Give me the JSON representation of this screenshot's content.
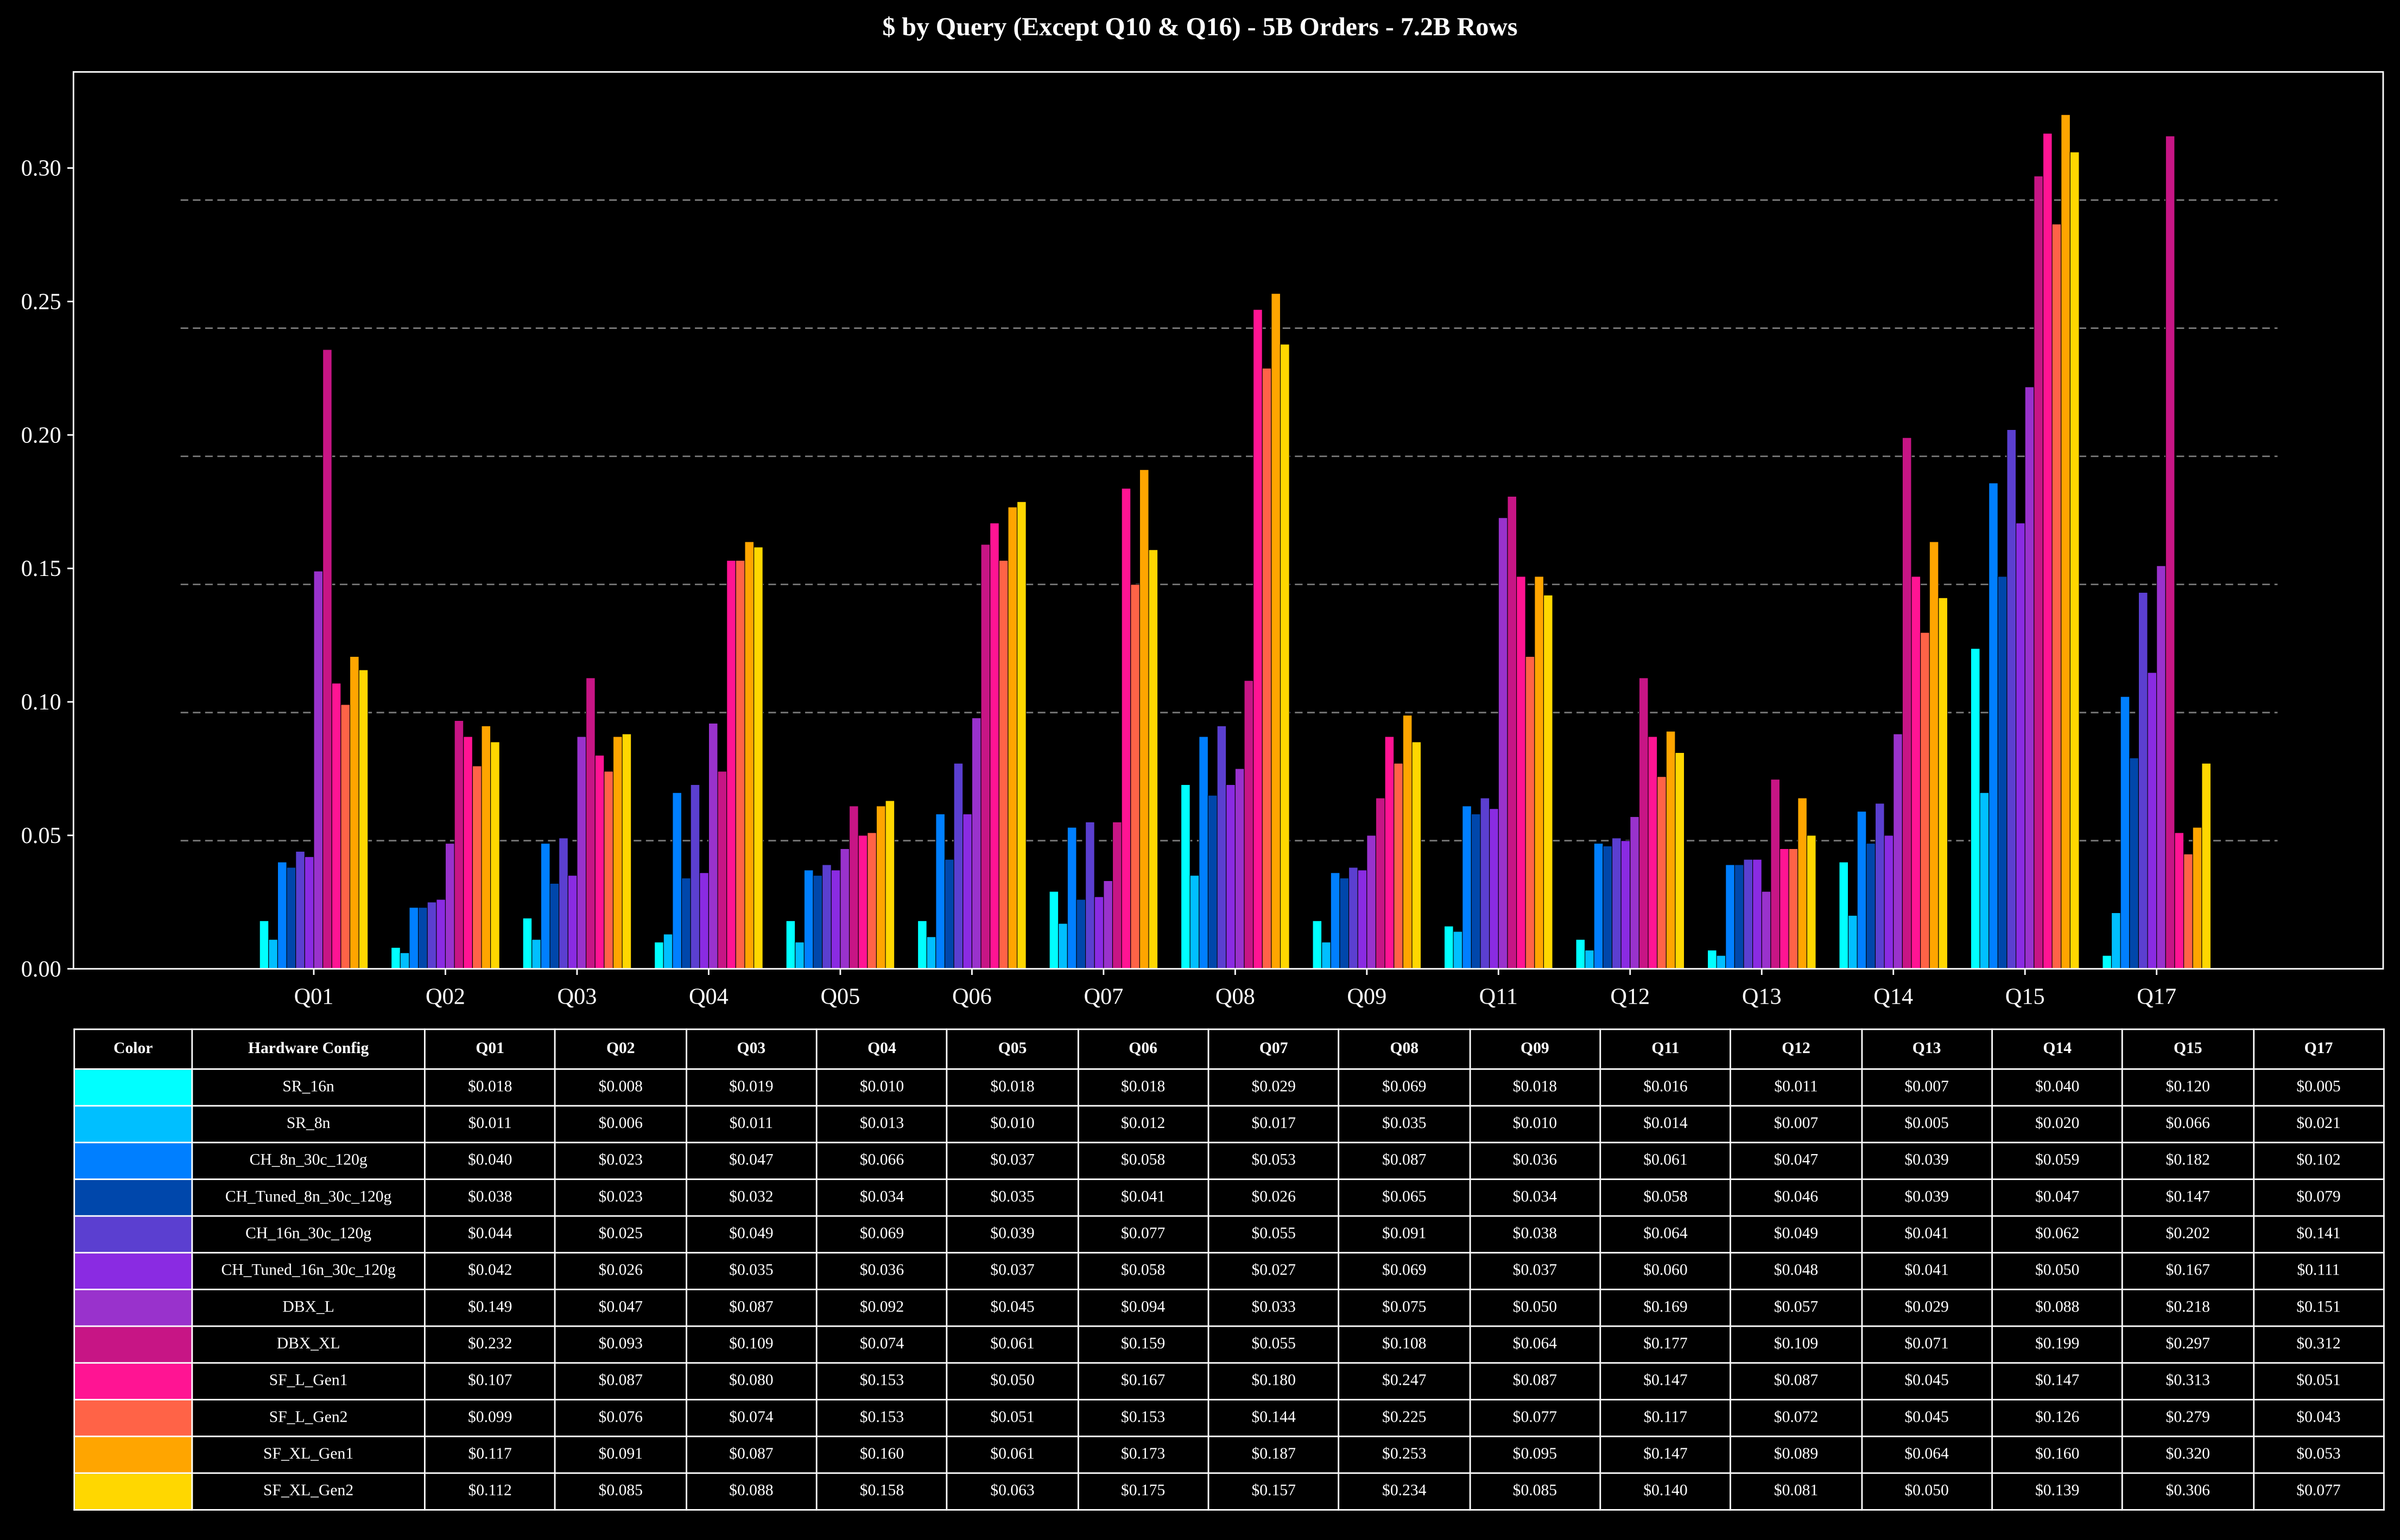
{
  "chart_data": {
    "type": "bar",
    "title": "$ by Query (Except Q10 & Q16) - 5B Orders - 7.2B Rows",
    "xlabel": "",
    "ylabel": "",
    "ylim": [
      0,
      0.336
    ],
    "yticks": [
      "0.00",
      "0.05",
      "0.10",
      "0.15",
      "0.20",
      "0.25",
      "0.30"
    ],
    "gridlines": [
      0.048,
      0.096,
      0.144,
      0.192,
      0.24,
      0.288
    ],
    "categories": [
      "Q01",
      "Q02",
      "Q03",
      "Q04",
      "Q05",
      "Q06",
      "Q07",
      "Q08",
      "Q09",
      "Q11",
      "Q12",
      "Q13",
      "Q14",
      "Q15",
      "Q17"
    ],
    "series": [
      {
        "name": "SR_16n",
        "color": "#00FFFF",
        "values": [
          0.018,
          0.008,
          0.019,
          0.01,
          0.018,
          0.018,
          0.029,
          0.069,
          0.018,
          0.016,
          0.011,
          0.007,
          0.04,
          0.12,
          0.005
        ]
      },
      {
        "name": "SR_8n",
        "color": "#00BFFF",
        "values": [
          0.011,
          0.006,
          0.011,
          0.013,
          0.01,
          0.012,
          0.017,
          0.035,
          0.01,
          0.014,
          0.007,
          0.005,
          0.02,
          0.066,
          0.021
        ]
      },
      {
        "name": "CH_8n_30c_120g",
        "color": "#007FFF",
        "values": [
          0.04,
          0.023,
          0.047,
          0.066,
          0.037,
          0.058,
          0.053,
          0.087,
          0.036,
          0.061,
          0.047,
          0.039,
          0.059,
          0.182,
          0.102
        ]
      },
      {
        "name": "CH_Tuned_8n_30c_120g",
        "color": "#0047AB",
        "values": [
          0.038,
          0.023,
          0.032,
          0.034,
          0.035,
          0.041,
          0.026,
          0.065,
          0.034,
          0.058,
          0.046,
          0.039,
          0.047,
          0.147,
          0.079
        ]
      },
      {
        "name": "CH_16n_30c_120g",
        "color": "#5B3FD0",
        "values": [
          0.044,
          0.025,
          0.049,
          0.069,
          0.039,
          0.077,
          0.055,
          0.091,
          0.038,
          0.064,
          0.049,
          0.041,
          0.062,
          0.202,
          0.141
        ]
      },
      {
        "name": "CH_Tuned_16n_30c_120g",
        "color": "#8A2BE2",
        "values": [
          0.042,
          0.026,
          0.035,
          0.036,
          0.037,
          0.058,
          0.027,
          0.069,
          0.037,
          0.06,
          0.048,
          0.041,
          0.05,
          0.167,
          0.111
        ]
      },
      {
        "name": "DBX_L",
        "color": "#9932CC",
        "values": [
          0.149,
          0.047,
          0.087,
          0.092,
          0.045,
          0.094,
          0.033,
          0.075,
          0.05,
          0.169,
          0.057,
          0.029,
          0.088,
          0.218,
          0.151
        ]
      },
      {
        "name": "DBX_XL",
        "color": "#C71585",
        "values": [
          0.232,
          0.093,
          0.109,
          0.074,
          0.061,
          0.159,
          0.055,
          0.108,
          0.064,
          0.177,
          0.109,
          0.071,
          0.199,
          0.297,
          0.312
        ]
      },
      {
        "name": "SF_L_Gen1",
        "color": "#FF1493",
        "values": [
          0.107,
          0.087,
          0.08,
          0.153,
          0.05,
          0.167,
          0.18,
          0.247,
          0.087,
          0.147,
          0.087,
          0.045,
          0.147,
          0.313,
          0.051
        ]
      },
      {
        "name": "SF_L_Gen2",
        "color": "#FF6347",
        "values": [
          0.099,
          0.076,
          0.074,
          0.153,
          0.051,
          0.153,
          0.144,
          0.225,
          0.077,
          0.117,
          0.072,
          0.045,
          0.126,
          0.279,
          0.043
        ]
      },
      {
        "name": "SF_XL_Gen1",
        "color": "#FFA500",
        "values": [
          0.117,
          0.091,
          0.087,
          0.16,
          0.061,
          0.173,
          0.187,
          0.253,
          0.095,
          0.147,
          0.089,
          0.064,
          0.16,
          0.32,
          0.053
        ]
      },
      {
        "name": "SF_XL_Gen2",
        "color": "#FFD700",
        "values": [
          0.112,
          0.085,
          0.088,
          0.158,
          0.063,
          0.175,
          0.157,
          0.234,
          0.085,
          0.14,
          0.081,
          0.05,
          0.139,
          0.306,
          0.077
        ]
      }
    ]
  },
  "table": {
    "color_header": "Color",
    "config_header": "Hardware Config",
    "currency_prefix": "$"
  }
}
